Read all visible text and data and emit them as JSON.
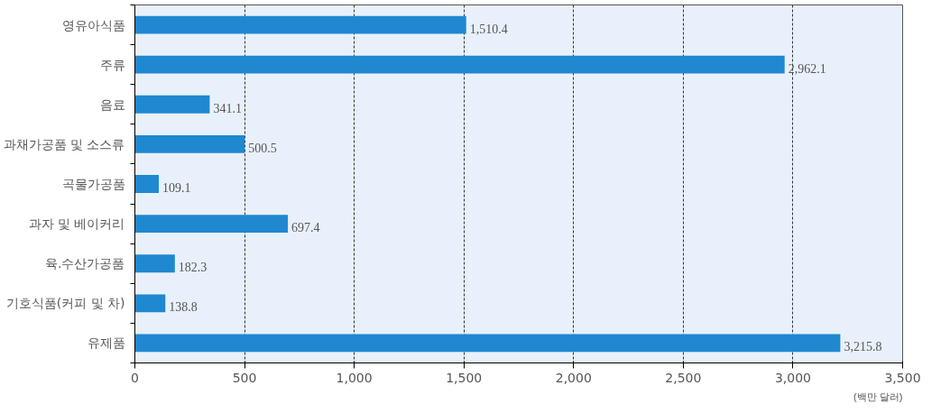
{
  "chart_data": {
    "type": "bar",
    "orientation": "horizontal",
    "xlabel": "(백만 달러)",
    "categories": [
      "영유아식품",
      "주류",
      "음료",
      "과채가공품 및 소스류",
      "곡물가공품",
      "과자 및 베이커리",
      "육.수산가공품",
      "기호식품(커피 및 차)",
      "유제품"
    ],
    "values": [
      1510.4,
      2962.1,
      341.1,
      500.5,
      109.1,
      697.4,
      182.3,
      138.8,
      3215.8
    ],
    "value_labels": [
      "1,510.4",
      "2,962.1",
      "341.1",
      "500.5",
      "109.1",
      "697.4",
      "182.3",
      "138.8",
      "3,215.8"
    ],
    "color": "#1f88d0",
    "xlim": [
      0,
      3500
    ],
    "xticks": [
      0,
      500,
      {
        "value": 1000,
        "label": "1,000"
      },
      {
        "value": 1500,
        "label": "1,500"
      },
      {
        "value": 2000,
        "label": "2,000"
      },
      {
        "value": 2500,
        "label": "2,500"
      },
      {
        "value": 3000,
        "label": "3,000"
      },
      {
        "value": 3500,
        "label": "3,500"
      }
    ],
    "grid": "x"
  }
}
